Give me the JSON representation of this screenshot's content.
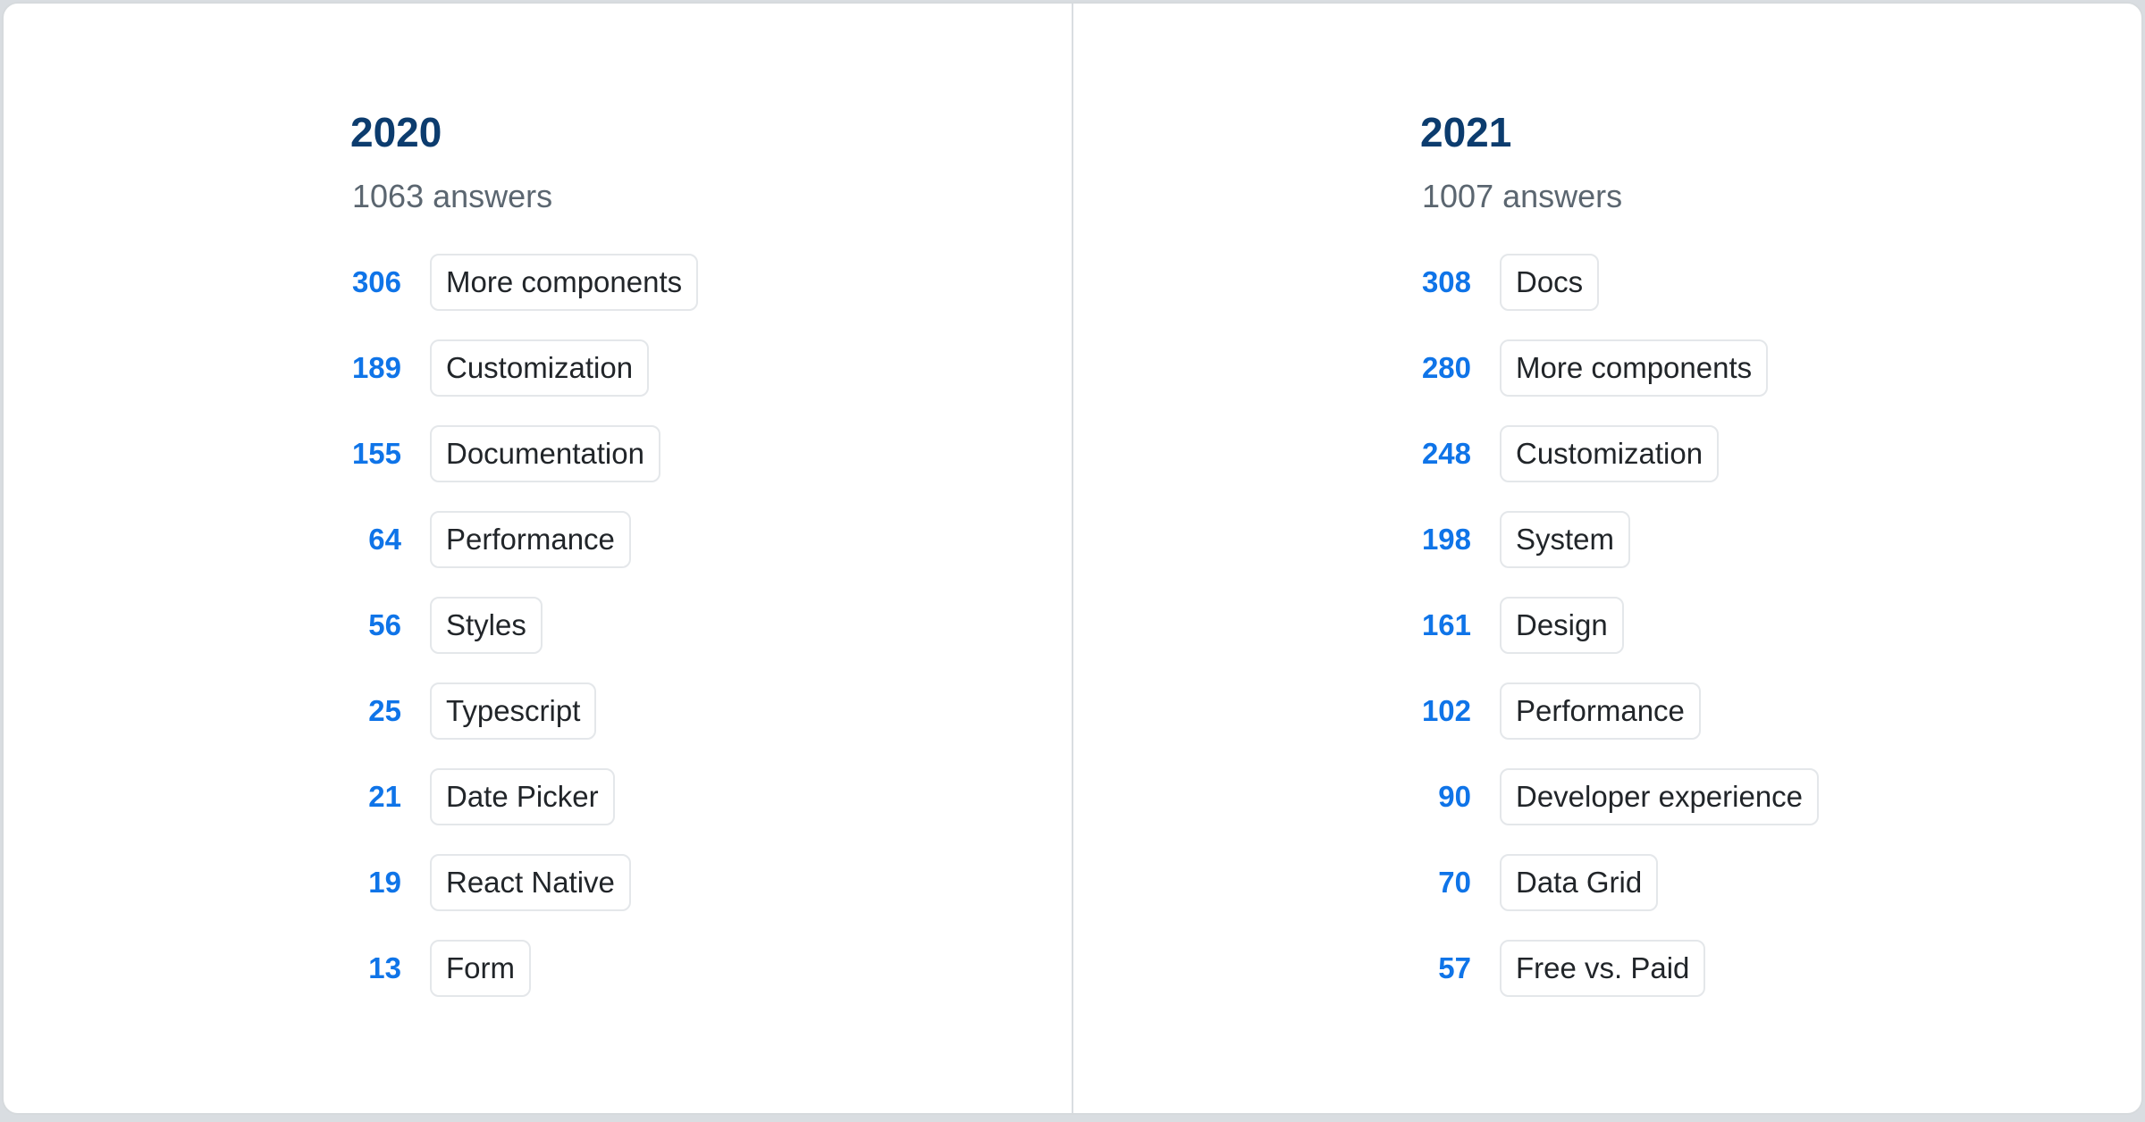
{
  "colors": {
    "page_background": "#d9dde1",
    "card_background": "#ffffff",
    "card_border": "#d6dadd",
    "divider": "#d9dde1",
    "year_heading": "#0c3c6e",
    "count_number": "#0f74e8",
    "answers_subtitle": "#5b6670",
    "chip_text": "#212529",
    "chip_border": "#e4e7ea"
  },
  "columns": [
    {
      "year": "2020",
      "answers_label": "1063 answers",
      "items": [
        {
          "count": "306",
          "label": "More components"
        },
        {
          "count": "189",
          "label": "Customization"
        },
        {
          "count": "155",
          "label": "Documentation"
        },
        {
          "count": "64",
          "label": "Performance"
        },
        {
          "count": "56",
          "label": "Styles"
        },
        {
          "count": "25",
          "label": "Typescript"
        },
        {
          "count": "21",
          "label": "Date Picker"
        },
        {
          "count": "19",
          "label": "React Native"
        },
        {
          "count": "13",
          "label": "Form"
        }
      ]
    },
    {
      "year": "2021",
      "answers_label": "1007 answers",
      "items": [
        {
          "count": "308",
          "label": "Docs"
        },
        {
          "count": "280",
          "label": "More components"
        },
        {
          "count": "248",
          "label": "Customization"
        },
        {
          "count": "198",
          "label": "System"
        },
        {
          "count": "161",
          "label": "Design"
        },
        {
          "count": "102",
          "label": "Performance"
        },
        {
          "count": "90",
          "label": "Developer experience"
        },
        {
          "count": "70",
          "label": "Data Grid"
        },
        {
          "count": "57",
          "label": "Free vs. Paid"
        }
      ]
    }
  ],
  "chart_data": [
    {
      "type": "table",
      "title": "2020",
      "subtitle": "1063 answers",
      "total_answers": 1063,
      "categories": [
        "More components",
        "Customization",
        "Documentation",
        "Performance",
        "Styles",
        "Typescript",
        "Date Picker",
        "React Native",
        "Form"
      ],
      "values": [
        306,
        189,
        155,
        64,
        56,
        25,
        21,
        19,
        13
      ]
    },
    {
      "type": "table",
      "title": "2021",
      "subtitle": "1007 answers",
      "total_answers": 1007,
      "categories": [
        "Docs",
        "More components",
        "Customization",
        "System",
        "Design",
        "Performance",
        "Developer experience",
        "Data Grid",
        "Free vs. Paid"
      ],
      "values": [
        308,
        280,
        248,
        198,
        161,
        102,
        90,
        70,
        57
      ]
    }
  ]
}
